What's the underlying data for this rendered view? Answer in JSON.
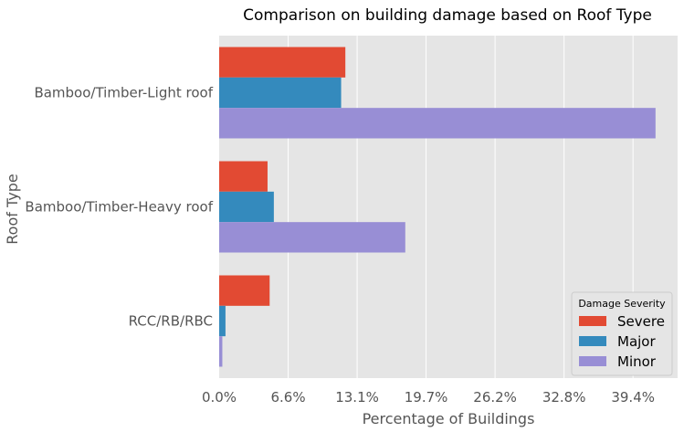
{
  "chart_data": {
    "type": "bar",
    "orientation": "horizontal",
    "title": "Comparison on building damage based on Roof Type",
    "xlabel": "Percentage of Buildings",
    "ylabel": "Roof Type",
    "categories": [
      "Bamboo/Timber-Light roof",
      "Bamboo/Timber-Heavy roof",
      "RCC/RB/RBC"
    ],
    "series": [
      {
        "name": "Severe",
        "color": "#E24A33",
        "values": [
          12.0,
          4.6,
          4.8
        ]
      },
      {
        "name": "Major",
        "color": "#348ABD",
        "values": [
          11.6,
          5.2,
          0.6
        ]
      },
      {
        "name": "Minor",
        "color": "#988ED5",
        "values": [
          41.5,
          17.7,
          0.3
        ]
      }
    ],
    "xticks": [
      0.0,
      6.56,
      13.12,
      19.68,
      26.24,
      32.8,
      39.36
    ],
    "xtick_labels": [
      "0.0%",
      "6.6%",
      "13.1%",
      "19.7%",
      "26.2%",
      "32.8%",
      "39.4%"
    ],
    "xlim": [
      0,
      43.6
    ],
    "grid": true,
    "legend": {
      "title": "Damage Severity",
      "position": "lower-right"
    }
  }
}
